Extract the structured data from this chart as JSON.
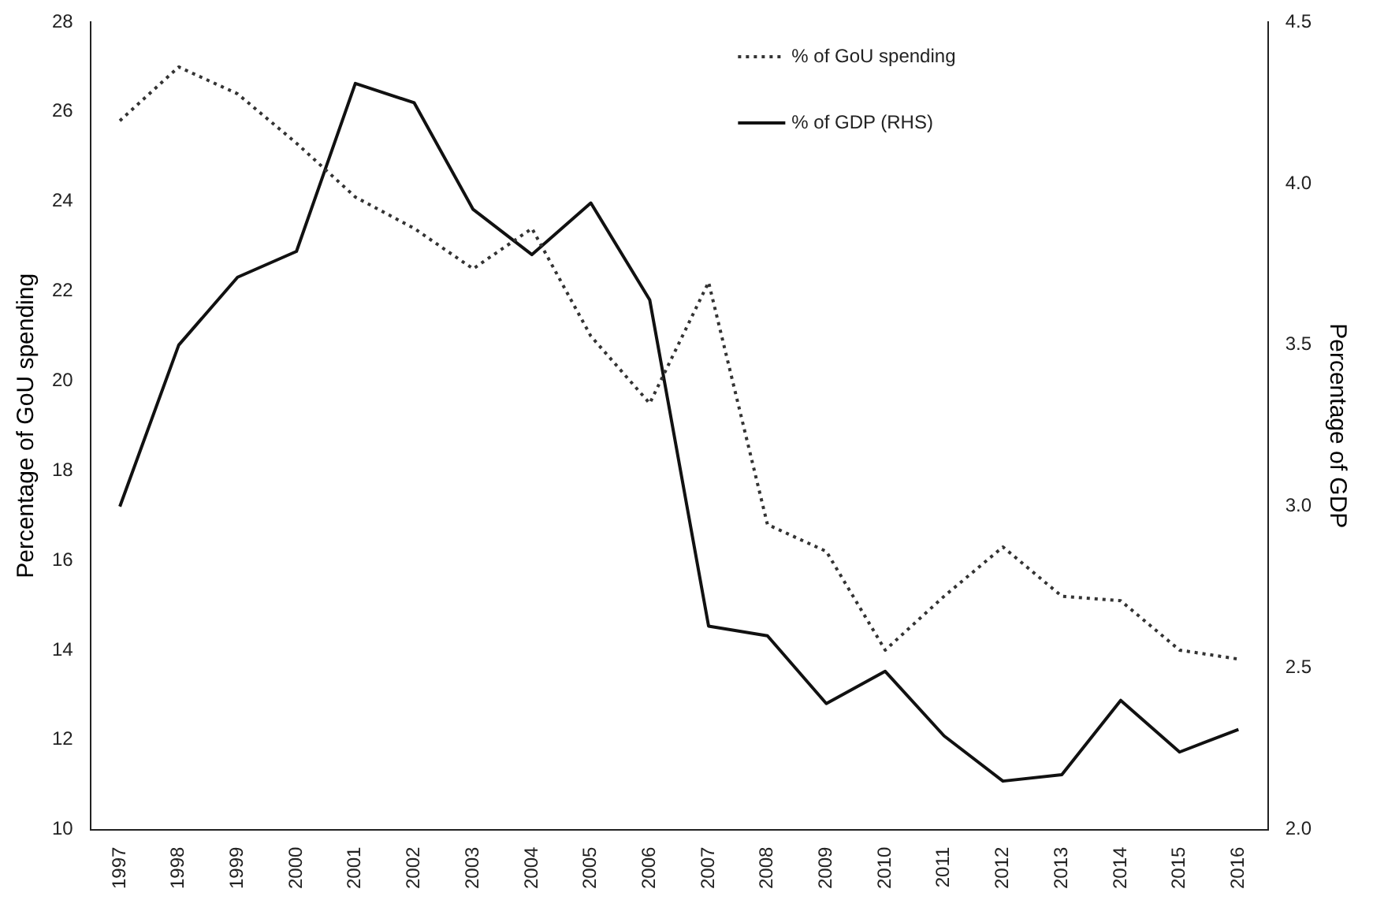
{
  "chart_data": {
    "type": "line",
    "ylabel": "Percentage of GoU spending",
    "y2label": "Percentage of GDP",
    "categories": [
      "1997",
      "1998",
      "1999",
      "2000",
      "2001",
      "2002",
      "2003",
      "2004",
      "2005",
      "2006",
      "2007",
      "2008",
      "2009",
      "2010",
      "2011",
      "2012",
      "2013",
      "2014",
      "2015",
      "2016"
    ],
    "series": [
      {
        "name": "% of GoU spending",
        "color": "#333333",
        "line_style": "dotted",
        "values": [
          25.8,
          27.0,
          26.4,
          25.3,
          24.1,
          23.4,
          22.5,
          23.4,
          21.0,
          19.5,
          22.2,
          16.8,
          16.2,
          14.0,
          15.2,
          16.3,
          15.2,
          15.1,
          14.0,
          13.8
        ]
      },
      {
        "name": "% of GDP (RHS)",
        "color": "#111111",
        "line_style": "solid",
        "axis": "y2",
        "values": [
          3.0,
          3.5,
          3.71,
          3.79,
          4.31,
          4.25,
          3.92,
          3.78,
          3.94,
          3.64,
          2.63,
          2.6,
          2.39,
          2.49,
          2.29,
          2.15,
          2.17,
          2.4,
          2.24,
          2.31
        ]
      }
    ],
    "ylim": [
      10,
      28
    ],
    "yticks": [
      10,
      12,
      14,
      16,
      18,
      20,
      22,
      24,
      26,
      28
    ],
    "y2lim": [
      2,
      4.5
    ],
    "y2ticks": [
      {
        "value": 2,
        "label": "2.0"
      },
      {
        "value": 2.5,
        "label": "2.5"
      },
      {
        "value": 3,
        "label": "3.0"
      },
      {
        "value": 3.5,
        "label": "3.5"
      },
      {
        "value": 4,
        "label": "4.0"
      },
      {
        "value": 4.5,
        "label": "4.5"
      }
    ],
    "grid": false,
    "legend": "top right",
    "marker": "none"
  }
}
